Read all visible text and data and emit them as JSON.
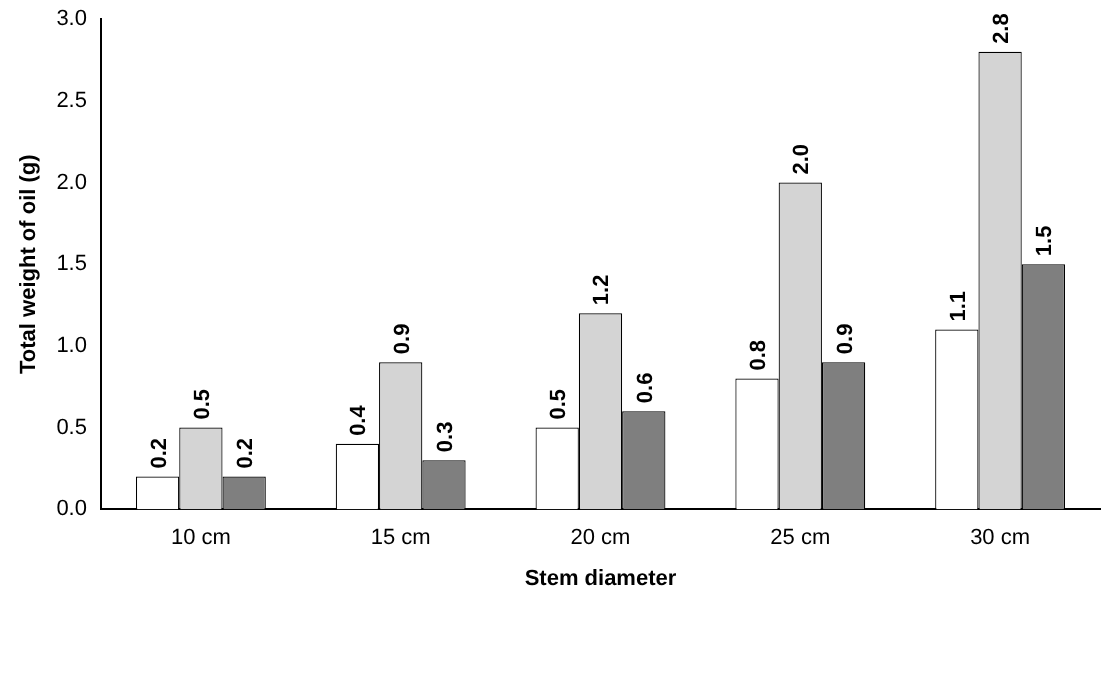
{
  "chart_data": {
    "type": "bar",
    "xlabel": "Stem diameter",
    "ylabel": "Total weight of oil (g)",
    "categories": [
      "10 cm",
      "15 cm",
      "20 cm",
      "25 cm",
      "30 cm"
    ],
    "series": [
      {
        "color": "#ffffff",
        "values": [
          0.2,
          0.4,
          0.5,
          0.8,
          1.1
        ],
        "value_labels": [
          "0.2",
          "0.4",
          "0.5",
          "0.8",
          "1.1"
        ]
      },
      {
        "color": "#d4d4d4",
        "values": [
          0.5,
          0.9,
          1.2,
          2.0,
          2.8
        ],
        "value_labels": [
          "0.5",
          "0.9",
          "1.2",
          "2.0",
          "2.8"
        ]
      },
      {
        "color": "#7f7f7f",
        "values": [
          0.2,
          0.3,
          0.6,
          0.9,
          1.5
        ],
        "value_labels": [
          "0.2",
          "0.3",
          "0.6",
          "0.9",
          "1.5"
        ]
      }
    ],
    "ylim": [
      0,
      3
    ],
    "yticks": [
      {
        "value": 0,
        "label": "0.0"
      },
      {
        "value": 0.5,
        "label": "0.5"
      },
      {
        "value": 1,
        "label": "1.0"
      },
      {
        "value": 1.5,
        "label": "1.5"
      },
      {
        "value": 2,
        "label": "2.0"
      },
      {
        "value": 2.5,
        "label": "2.5"
      },
      {
        "value": 3,
        "label": "3.0"
      }
    ],
    "grid": false,
    "legend": false
  }
}
